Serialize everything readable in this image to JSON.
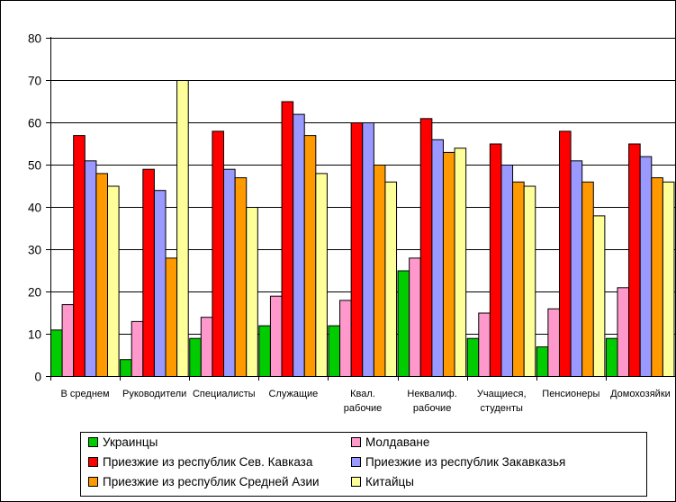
{
  "chart_data": {
    "type": "bar",
    "title": "",
    "xlabel": "",
    "ylabel": "",
    "ylim": [
      0,
      80
    ],
    "yticks": [
      0,
      10,
      20,
      30,
      40,
      50,
      60,
      70,
      80
    ],
    "grid": "horizontal",
    "legend_position": "bottom",
    "categories": [
      "В среднем",
      "Руководители",
      "Специалисты",
      "Служащие",
      "Квал. рабочие",
      "Неквалиф. рабочие",
      "Учащиеся, студенты",
      "Пенсионеры",
      "Домохозяйки"
    ],
    "category_labels": [
      [
        "В среднем"
      ],
      [
        "Руководители"
      ],
      [
        "Специалисты"
      ],
      [
        "Служащие"
      ],
      [
        "Квал.",
        "рабочие"
      ],
      [
        "Неквалиф.",
        "рабочие"
      ],
      [
        "Учащиеся,",
        "студенты"
      ],
      [
        "Пенсионеры"
      ],
      [
        "Домохозяйки"
      ]
    ],
    "series": [
      {
        "name": "Украинцы",
        "color": "#00cc00",
        "values": [
          11,
          4,
          9,
          12,
          12,
          25,
          9,
          7,
          9
        ]
      },
      {
        "name": "Молдаване",
        "color": "#ff99cc",
        "values": [
          17,
          13,
          14,
          19,
          18,
          28,
          15,
          16,
          21
        ]
      },
      {
        "name": "Приезжие из республик Сев. Кавказа",
        "color": "#ff0000",
        "values": [
          57,
          49,
          58,
          65,
          60,
          61,
          55,
          58,
          55
        ]
      },
      {
        "name": "Приезжие из республик Закавказья",
        "color": "#9999ff",
        "values": [
          51,
          44,
          49,
          62,
          60,
          56,
          50,
          51,
          52
        ]
      },
      {
        "name": "Приезжие из республик Средней Азии",
        "color": "#ff9900",
        "values": [
          48,
          28,
          47,
          57,
          50,
          53,
          46,
          46,
          47
        ]
      },
      {
        "name": "Китайцы",
        "color": "#ffff99",
        "values": [
          45,
          70,
          40,
          48,
          46,
          54,
          45,
          38,
          46
        ]
      }
    ]
  }
}
